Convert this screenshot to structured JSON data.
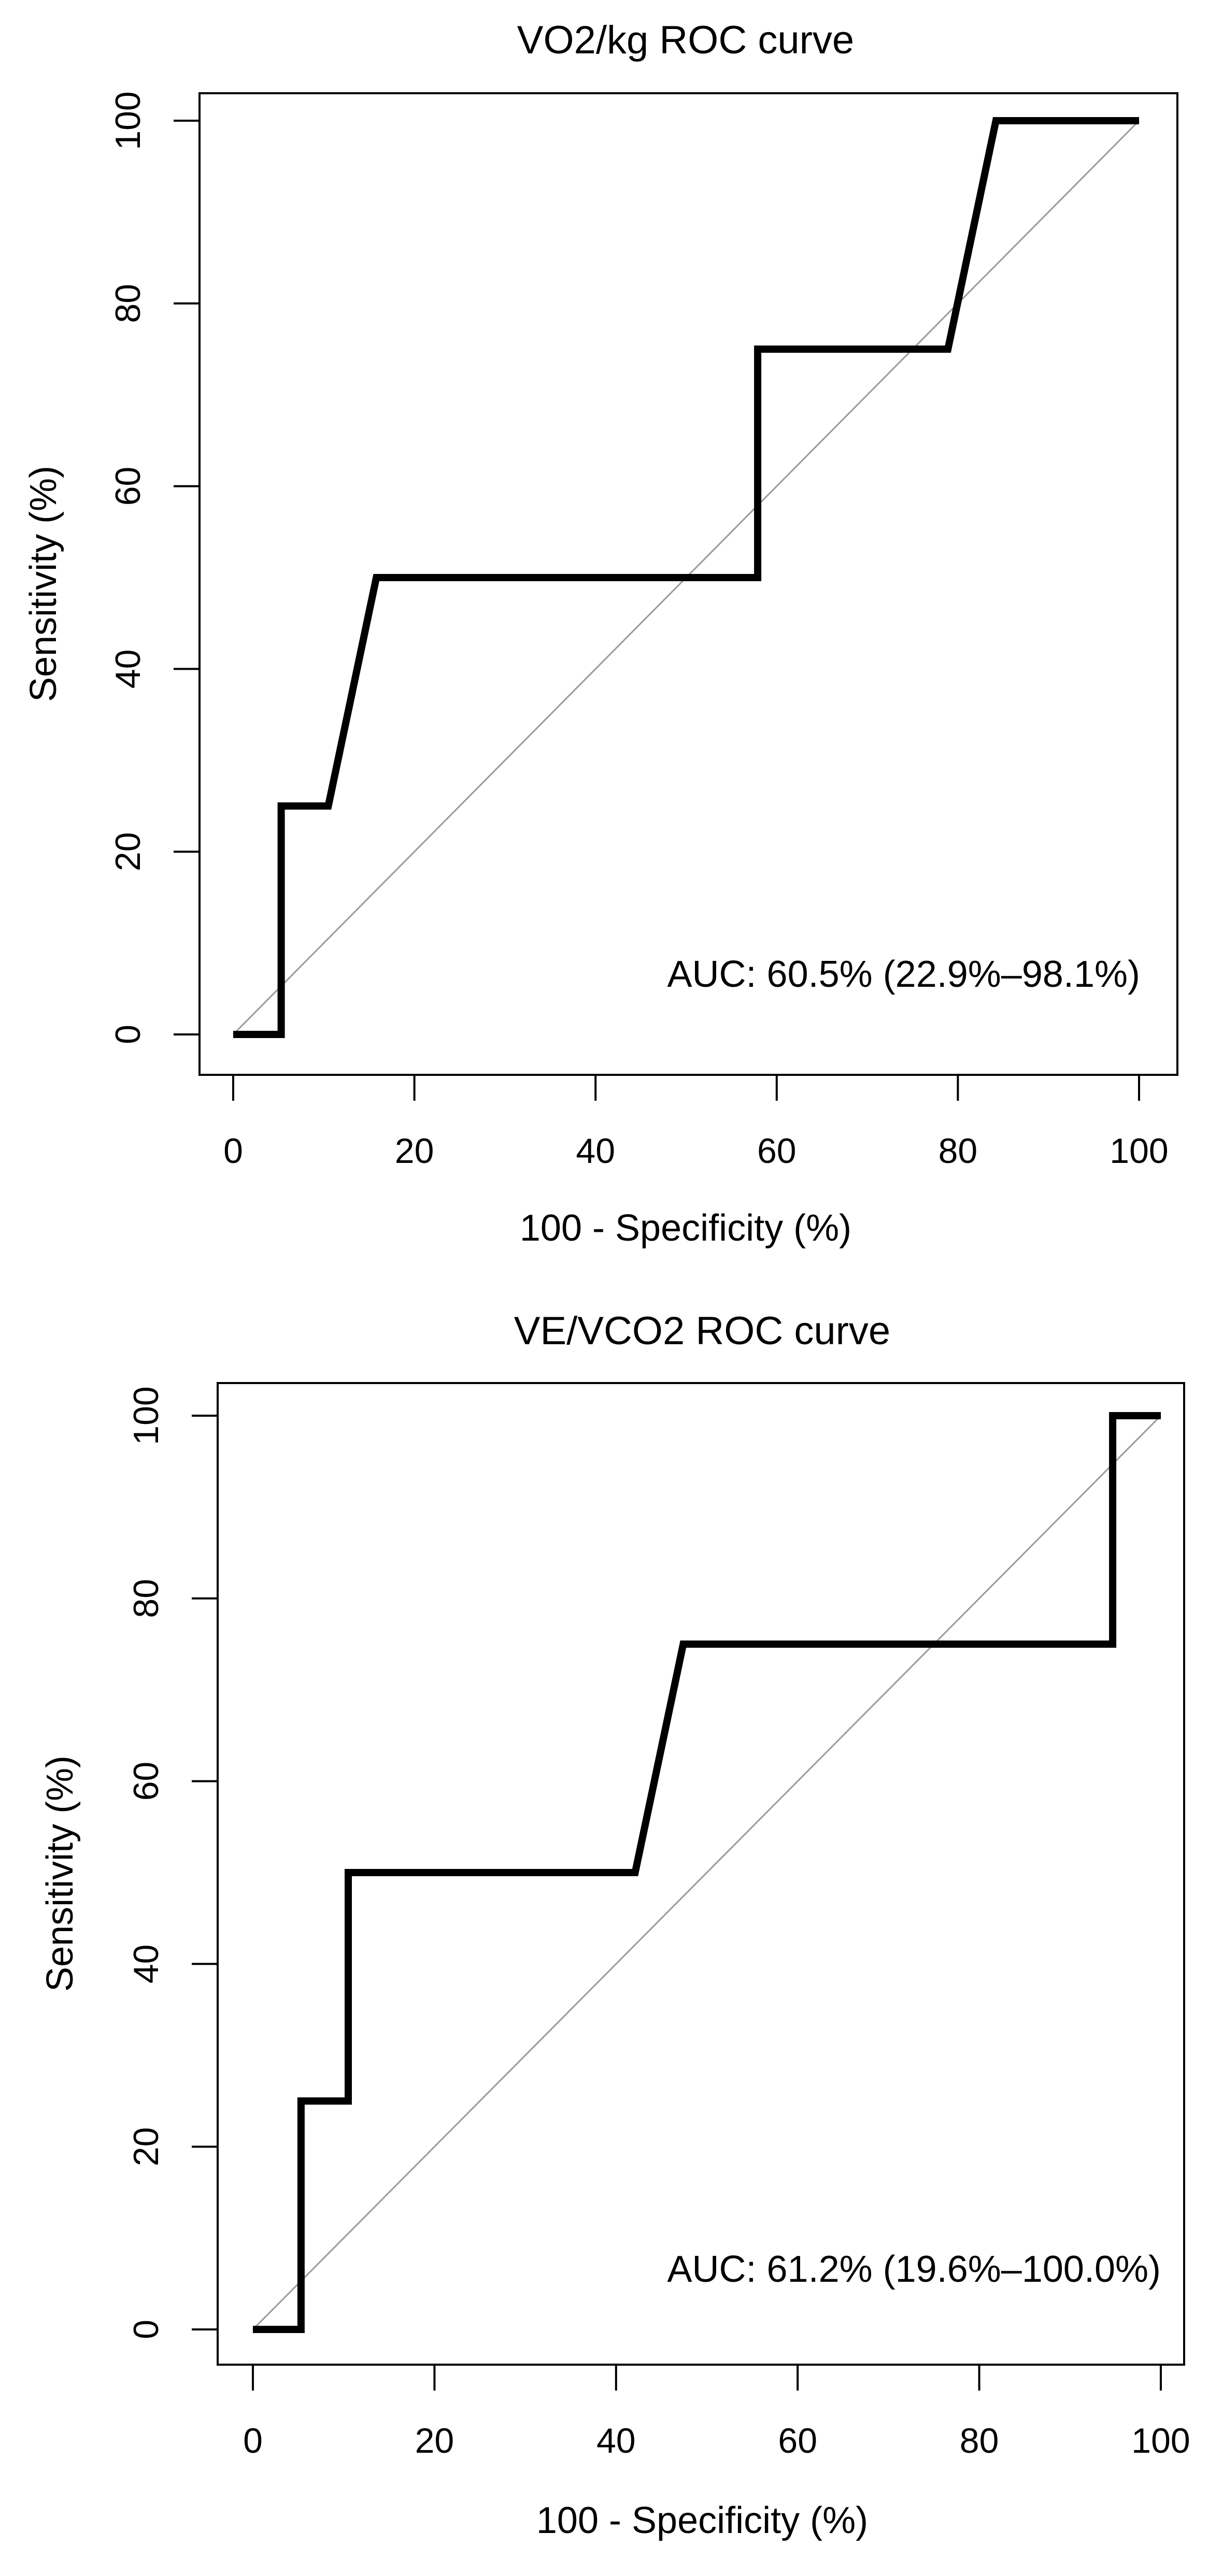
{
  "chart_data": [
    {
      "type": "line",
      "title": "VO2/kg ROC curve",
      "xlabel": "100 - Specificity (%)",
      "ylabel": "Sensitivity (%)",
      "xlim": [
        0,
        100
      ],
      "ylim": [
        0,
        100
      ],
      "x_ticks": [
        "0",
        "20",
        "40",
        "60",
        "80",
        "100"
      ],
      "y_ticks": [
        "0",
        "20",
        "40",
        "60",
        "80",
        "100"
      ],
      "grid": false,
      "reference_line": {
        "x": [
          0,
          100
        ],
        "y": [
          0,
          100
        ]
      },
      "series": [
        {
          "name": "ROC",
          "x": [
            0,
            5.3,
            5.3,
            10.5,
            15.8,
            57.9,
            57.9,
            78.9,
            84.2,
            100
          ],
          "y": [
            0,
            0,
            25,
            25,
            50,
            50,
            75,
            75,
            100,
            100
          ]
        }
      ],
      "annotation": "AUC: 60.5% (22.9%–98.1%)"
    },
    {
      "type": "line",
      "title": "VE/VCO2 ROC curve",
      "xlabel": "100 - Specificity (%)",
      "ylabel": "Sensitivity (%)",
      "xlim": [
        0,
        100
      ],
      "ylim": [
        0,
        100
      ],
      "x_ticks": [
        "0",
        "20",
        "40",
        "60",
        "80",
        "100"
      ],
      "y_ticks": [
        "0",
        "20",
        "40",
        "60",
        "80",
        "100"
      ],
      "grid": false,
      "reference_line": {
        "x": [
          0,
          100
        ],
        "y": [
          0,
          100
        ]
      },
      "series": [
        {
          "name": "ROC",
          "x": [
            0,
            5.3,
            5.3,
            10.5,
            10.5,
            42.1,
            47.4,
            94.7,
            94.7,
            100
          ],
          "y": [
            0,
            0,
            25,
            25,
            50,
            50,
            75,
            75,
            100,
            100
          ]
        }
      ],
      "annotation": "AUC: 61.2% (19.6%–100.0%)"
    }
  ]
}
